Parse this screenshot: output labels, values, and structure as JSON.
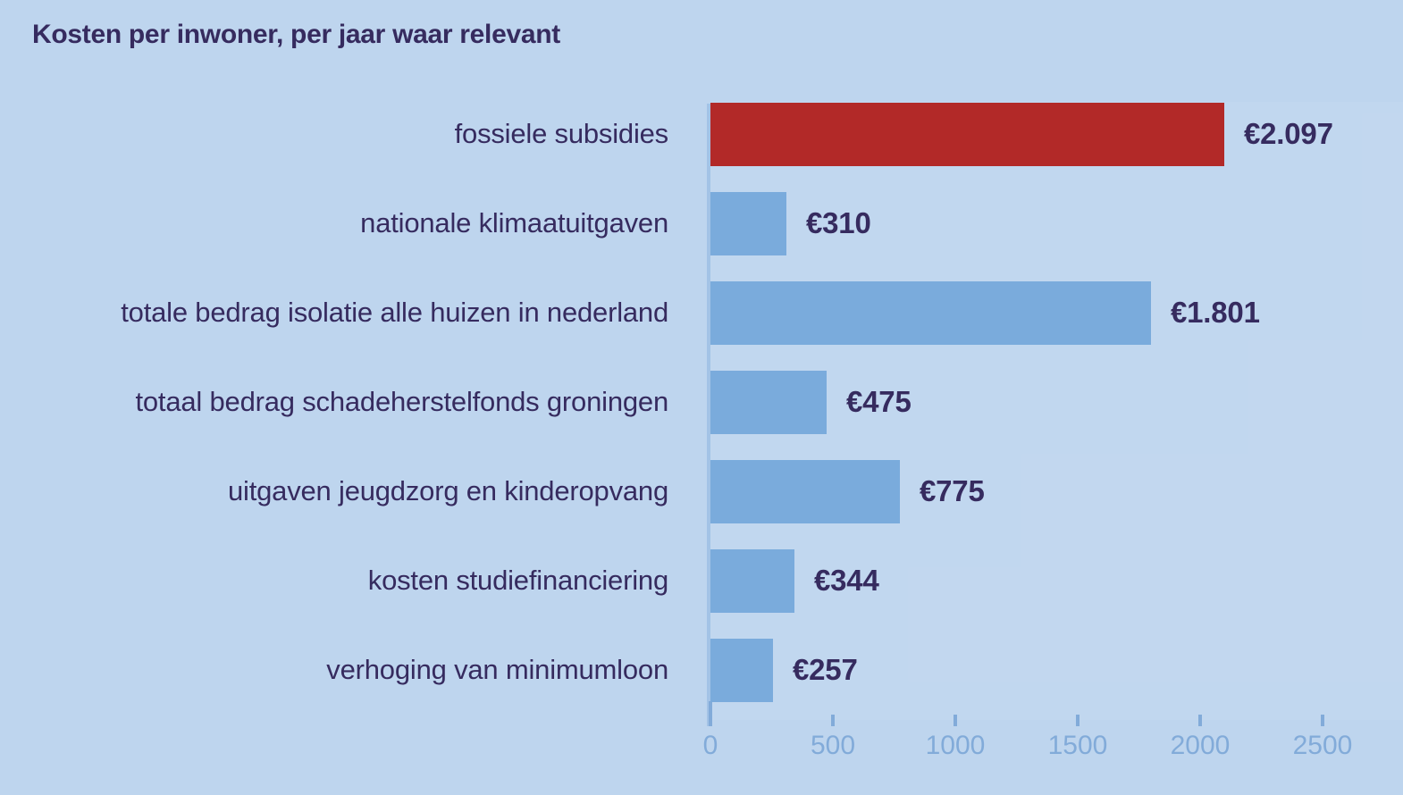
{
  "title": "Kosten per inwoner, per jaar waar relevant",
  "colors": {
    "background": "#bed5ee",
    "bar": "#7aabdc",
    "bar_highlight": "#b22928",
    "text": "#362b5f",
    "tick_text": "#82abd9",
    "axis_line": "#8db4e0"
  },
  "chart_data": {
    "type": "bar",
    "orientation": "horizontal",
    "title": "Kosten per inwoner, per jaar waar relevant",
    "categories": [
      "fossiele subsidies",
      "nationale klimaatuitgaven",
      "totale bedrag isolatie alle huizen in nederland",
      "totaal bedrag schadeherstelfonds groningen",
      "uitgaven jeugdzorg en kinderopvang",
      "kosten studiefinanciering",
      "verhoging van minimumloon"
    ],
    "values": [
      2097,
      310,
      1801,
      475,
      775,
      344,
      257
    ],
    "value_labels": [
      "€2.097",
      "€310",
      "€1.801",
      "€475",
      "€775",
      "€344",
      "€257"
    ],
    "currency": "EUR",
    "highlight_index": 0,
    "xlabel": "",
    "ylabel": "",
    "xlim": [
      0,
      2500
    ],
    "x_ticks": [
      0,
      500,
      1000,
      1500,
      2000,
      2500
    ],
    "x_tick_labels": [
      "0",
      "500",
      "1000",
      "1500",
      "2000",
      "2500"
    ],
    "grid": false,
    "legend": "none"
  }
}
